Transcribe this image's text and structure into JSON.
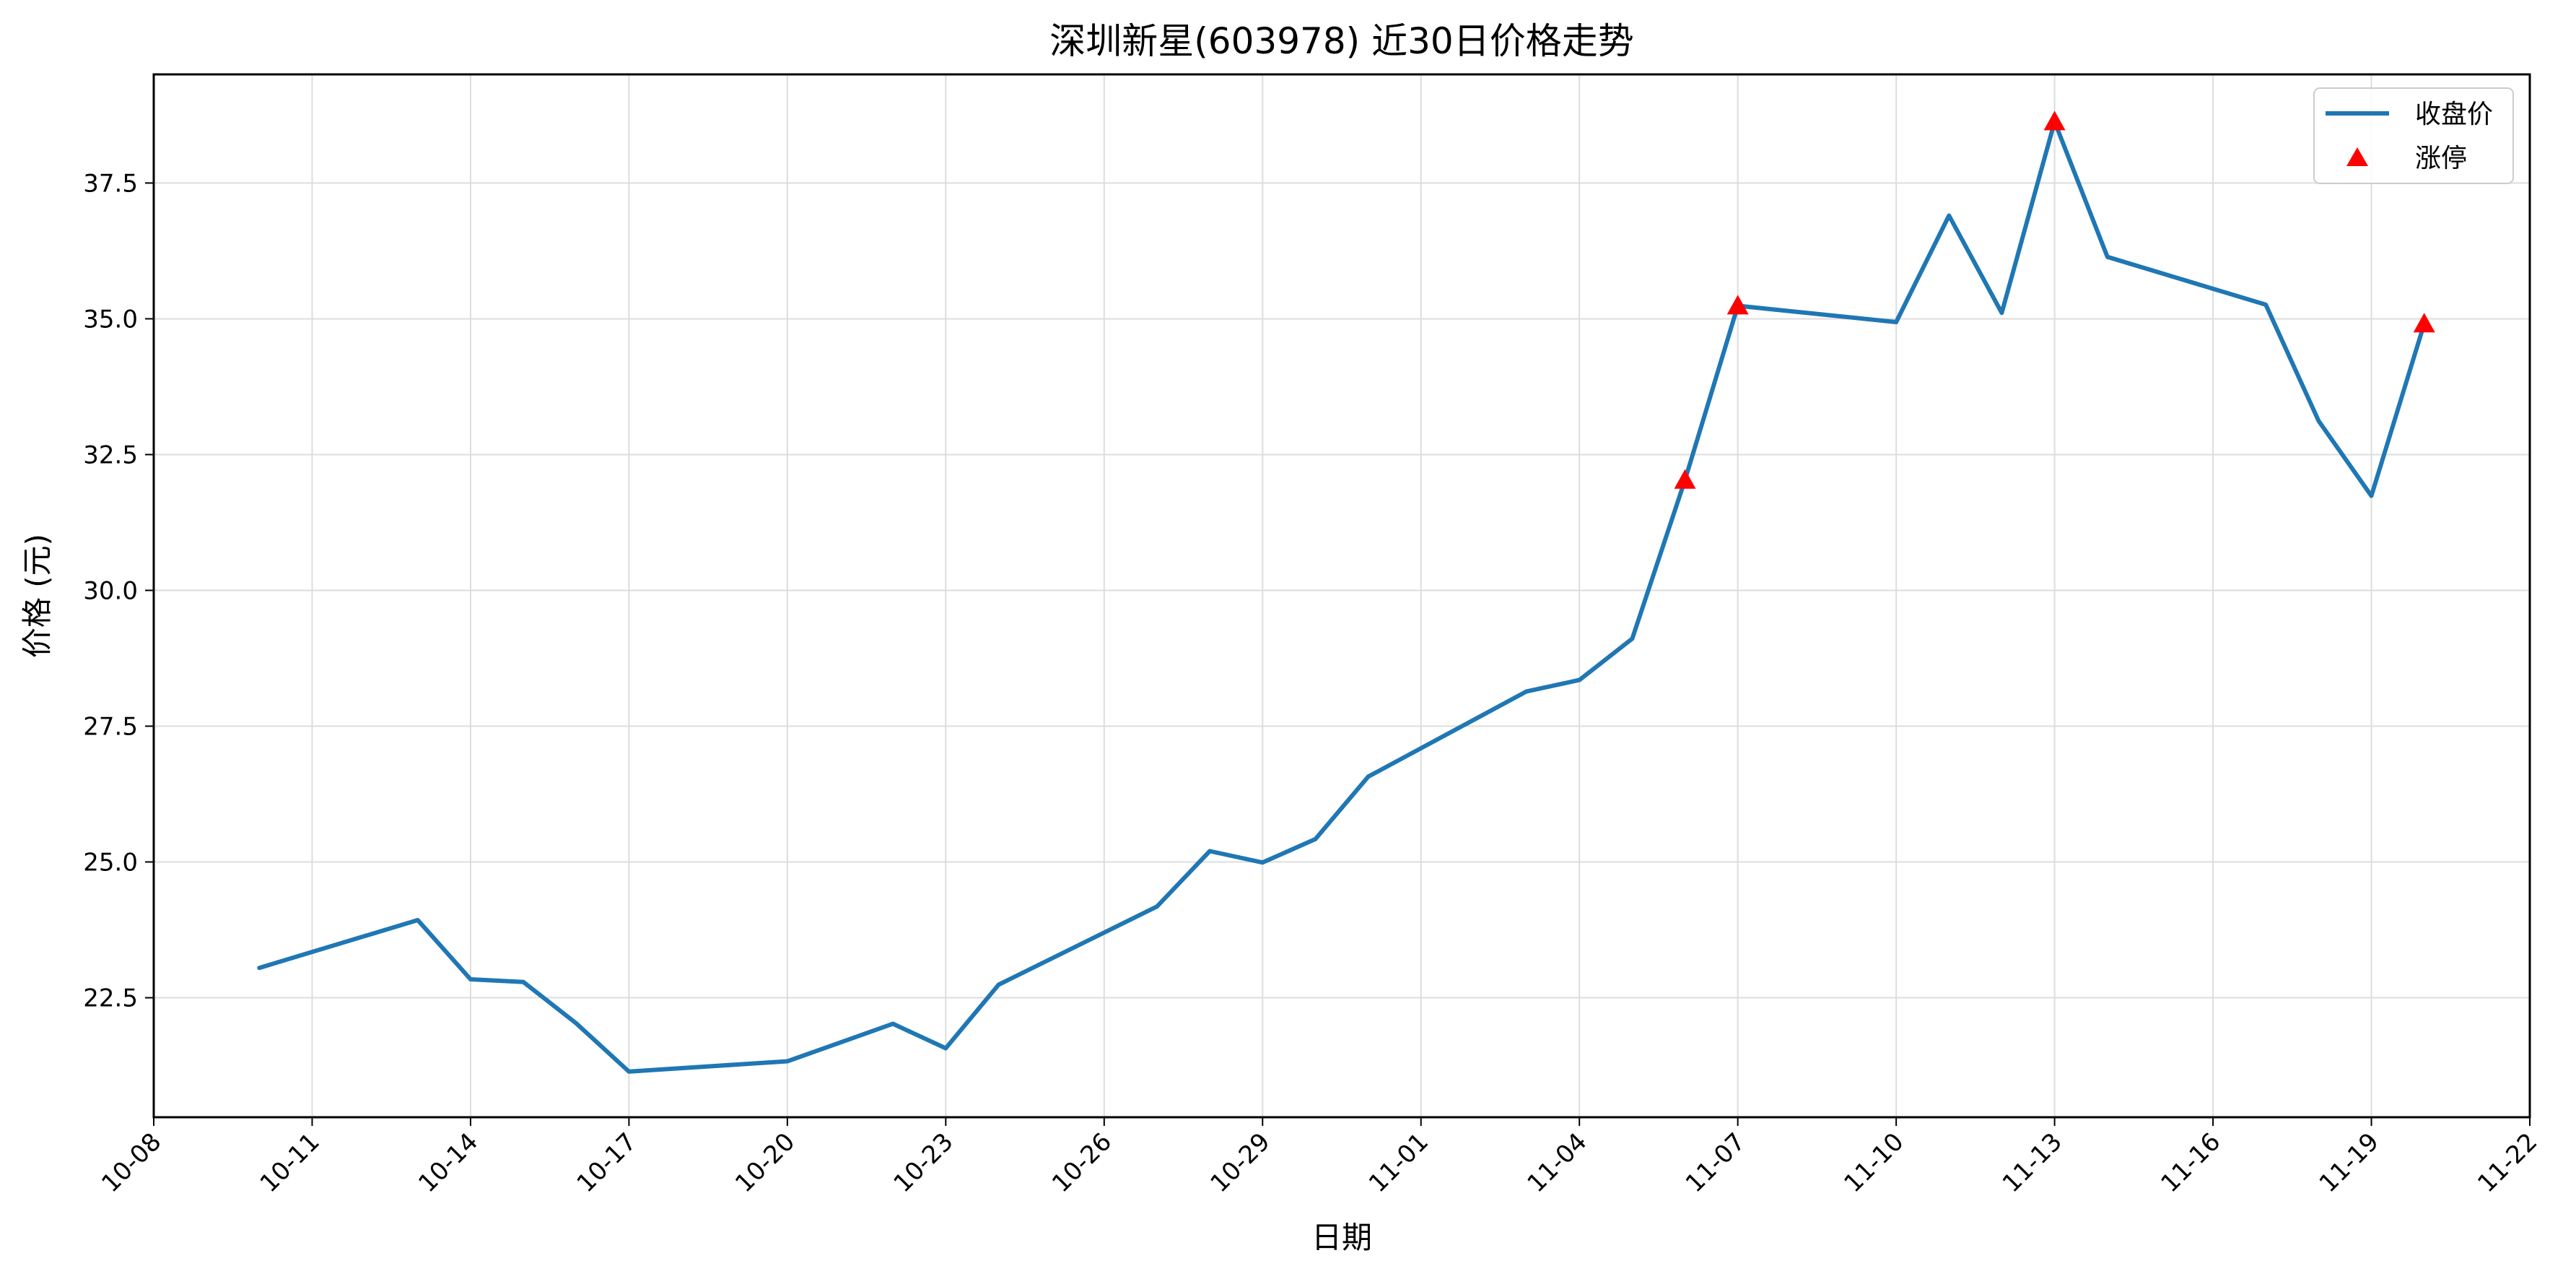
{
  "chart_data": {
    "type": "line",
    "title": "深圳新星(603978) 近30日价格走势",
    "xlabel": "日期",
    "ylabel": "价格 (元)",
    "x_ticks": [
      "10-08",
      "10-11",
      "10-14",
      "10-17",
      "10-20",
      "10-23",
      "10-26",
      "10-29",
      "11-01",
      "11-04",
      "11-07",
      "11-10",
      "11-13",
      "11-16",
      "11-19",
      "11-22"
    ],
    "y_ticks": [
      "22.5",
      "25.0",
      "27.5",
      "30.0",
      "32.5",
      "35.0",
      "37.5"
    ],
    "xlim": [
      "10-08",
      "11-22"
    ],
    "ylim": [
      20.3,
      39.5
    ],
    "grid": true,
    "legend_position": "top-right",
    "colors": {
      "line": "#1f77b4",
      "marker": "#ff0000",
      "grid": "#dddddd"
    },
    "series": [
      {
        "name": "收盘价",
        "x": [
          "10-10",
          "10-13",
          "10-14",
          "10-15",
          "10-16",
          "10-17",
          "10-20",
          "10-22",
          "10-23",
          "10-24",
          "10-27",
          "10-28",
          "10-29",
          "10-30",
          "10-31",
          "11-03",
          "11-04",
          "11-05",
          "11-06",
          "11-07",
          "11-10",
          "11-11",
          "11-12",
          "11-13",
          "11-14",
          "11-17",
          "11-18",
          "11-19",
          "11-20"
        ],
        "values": [
          23.05,
          23.93,
          22.84,
          22.79,
          22.03,
          21.14,
          21.33,
          22.02,
          21.57,
          22.74,
          24.18,
          25.2,
          24.99,
          25.42,
          26.57,
          28.14,
          28.35,
          29.11,
          32.03,
          35.24,
          34.94,
          36.9,
          35.11,
          38.63,
          36.14,
          35.26,
          33.12,
          31.74,
          34.91
        ]
      },
      {
        "name": "涨停",
        "marker": "triangle",
        "x": [
          "11-06",
          "11-07",
          "11-13",
          "11-20"
        ],
        "values": [
          32.03,
          35.24,
          38.63,
          34.91
        ]
      }
    ]
  }
}
